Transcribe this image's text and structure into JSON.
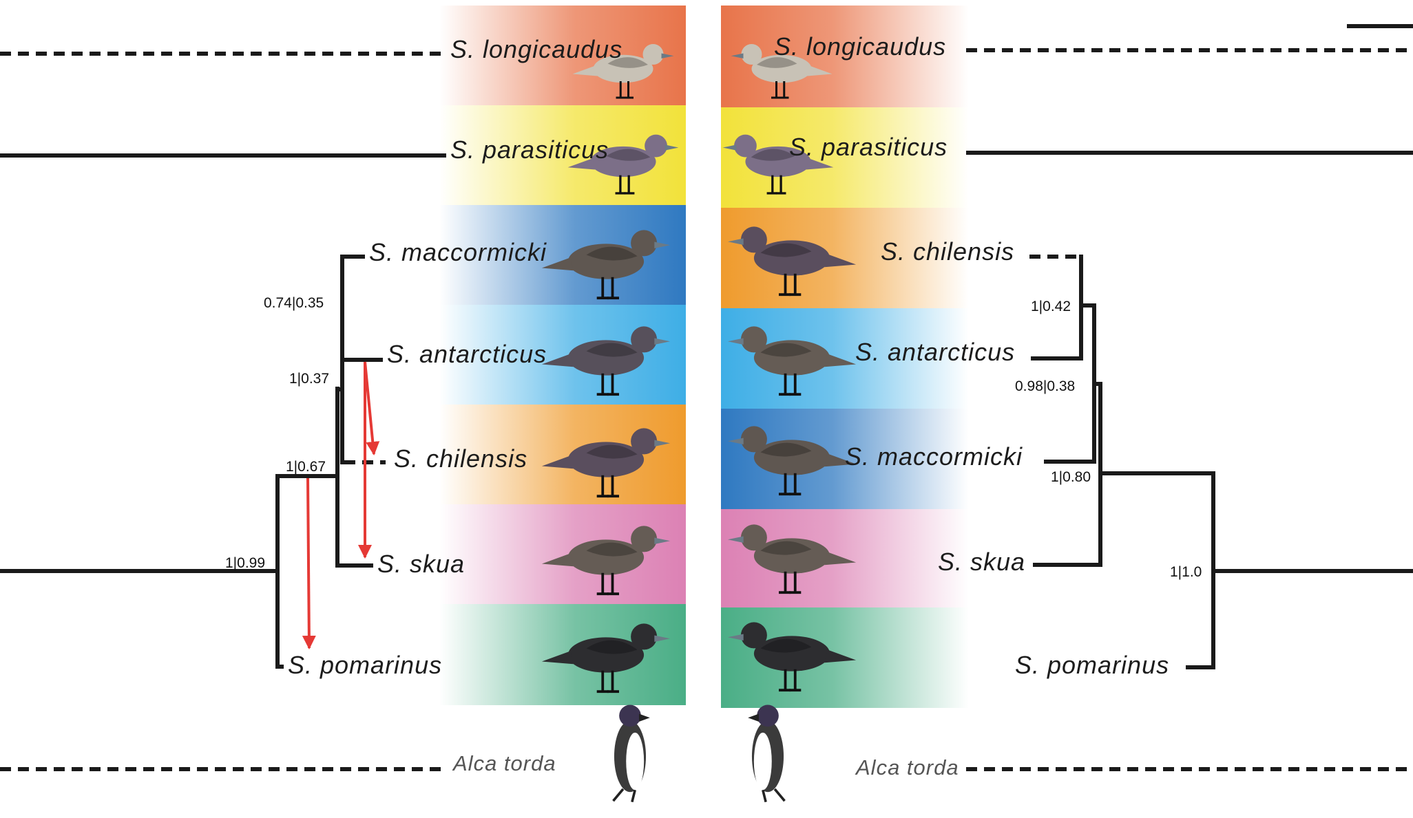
{
  "colors": {
    "longicaudus": "#e8744a",
    "parasiticus": "#f2e23a",
    "maccormicki": "#2f79c1",
    "antarcticus": "#3eaee6",
    "chilensis": "#ef9b2d",
    "skua": "#dc81b4",
    "pomarinus": "#4aae86",
    "branch": "#1a1a1a",
    "introgression_arrow": "#e53935"
  },
  "left_tree": {
    "taxa": {
      "longicaudus": "S. longicaudus",
      "parasiticus": "S. parasiticus",
      "maccormicki": "S. maccormicki",
      "antarcticus": "S. antarcticus",
      "chilensis": "S. chilensis",
      "skua": "S. skua",
      "pomarinus": "S. pomarinus",
      "outgroup": "Alca torda"
    },
    "supports": [
      "0.74|0.35",
      "1|0.37",
      "1|0.67",
      "1|0.99"
    ]
  },
  "right_tree": {
    "taxa": {
      "longicaudus": "S. longicaudus",
      "parasiticus": "S. parasiticus",
      "chilensis": "S. chilensis",
      "antarcticus": "S. antarcticus",
      "maccormicki": "S. maccormicki",
      "skua": "S. skua",
      "pomarinus": "S. pomarinus",
      "outgroup": "Alca torda"
    },
    "supports": [
      "1|0.42",
      "0.98|0.38",
      "1|0.80",
      "1|1.0"
    ]
  },
  "icons": {
    "bird": "skua-bird-icon",
    "outgroup_bird": "razorbill-bird-icon"
  }
}
